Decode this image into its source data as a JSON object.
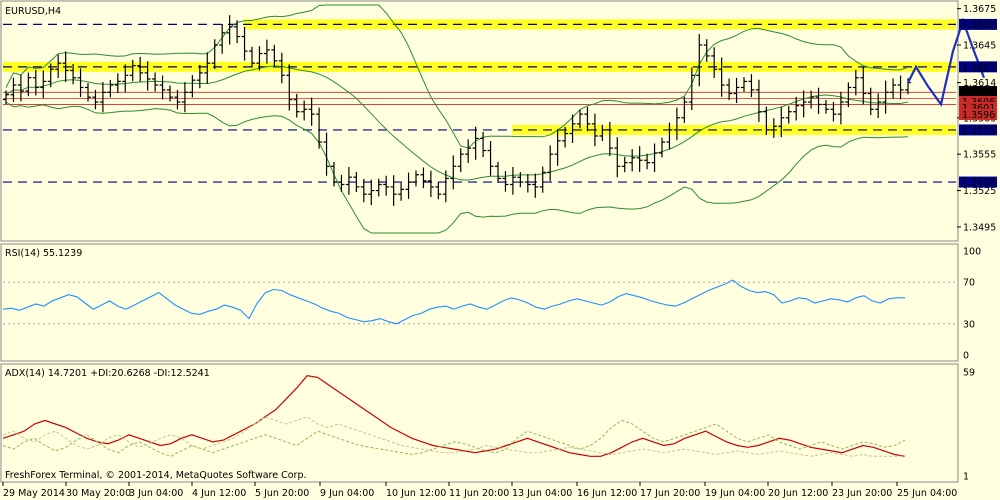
{
  "main_title": "EURUSD,H4",
  "rsi_title": "RSI(14) 55.1239",
  "adx_title": "ADX(14) 14.7201 +DI:20.6268 -DI:12.5241",
  "copyright": "FreshForex Terminal, © 2001-2014, MetaQuotes Software Corp.",
  "colors": {
    "background": "#ffffe0",
    "candles": "#000000",
    "bollinger": "#2e8b2e",
    "support_resistance_dashed": "#000080",
    "highlight_zone": "#ffff00",
    "current_price_lines": "#cc2a2a",
    "forecast": "#1f2fbf",
    "rsi": "#1e90ff",
    "adx": "#cc0000",
    "plus_di": "#8fbc4f",
    "minus_di": "#c8c48a"
  },
  "chart_data": [
    {
      "type": "candlestick",
      "title": "EURUSD,H4",
      "x": [
        "29 May 2014",
        "30 May 20:00",
        "3 Jun 04:00",
        "4 Jun 12:00",
        "5 Jun 20:00",
        "9 Jun 04:00",
        "10 Jun 12:00",
        "11 Jun 20:00",
        "13 Jun 04:00",
        "16 Jun 12:00",
        "17 Jun 20:00",
        "19 Jun 04:00",
        "20 Jun 12:00",
        "23 Jun 20:00",
        "25 Jun 04:00"
      ],
      "y_ticks": [
        "1.3675",
        "1.3645",
        "1.3614",
        "1.3585",
        "1.3555",
        "1.3525",
        "1.3495"
      ],
      "ylim": [
        1.349,
        1.3678
      ],
      "levels": [
        {
          "value": 1.3662,
          "label": "1.3662",
          "highlight": true
        },
        {
          "value": 1.3627,
          "label": "1.3627",
          "highlight": true
        },
        {
          "value": 1.3575,
          "label": "1.3575",
          "highlight": true
        },
        {
          "value": 1.3532,
          "label": "1.3532",
          "highlight": false
        }
      ],
      "current_prices": [
        {
          "label": "1.3614",
          "value": 1.3614
        },
        {
          "label": "1.3606",
          "value": 1.3606
        },
        {
          "label": "1.3601",
          "value": 1.3601
        },
        {
          "label": "1.3596",
          "value": 1.3596
        }
      ],
      "close_series": [
        1.3604,
        1.3612,
        1.3607,
        1.3618,
        1.361,
        1.3615,
        1.3625,
        1.363,
        1.3624,
        1.3618,
        1.361,
        1.3602,
        1.3598,
        1.3606,
        1.3612,
        1.3615,
        1.362,
        1.3628,
        1.3622,
        1.3617,
        1.3612,
        1.3608,
        1.3602,
        1.3598,
        1.3606,
        1.3616,
        1.3622,
        1.363,
        1.3645,
        1.3655,
        1.366,
        1.3652,
        1.364,
        1.363,
        1.3638,
        1.3641,
        1.3632,
        1.362,
        1.36,
        1.359,
        1.3592,
        1.3588,
        1.3565,
        1.3545,
        1.3532,
        1.353,
        1.3536,
        1.3528,
        1.3522,
        1.3525,
        1.353,
        1.3528,
        1.3522,
        1.3526,
        1.3532,
        1.3538,
        1.3533,
        1.3528,
        1.3522,
        1.3535,
        1.3545,
        1.3555,
        1.356,
        1.3568,
        1.3558,
        1.3545,
        1.3535,
        1.353,
        1.3536,
        1.3532,
        1.353,
        1.3528,
        1.354,
        1.3555,
        1.3566,
        1.3572,
        1.358,
        1.3588,
        1.358,
        1.357,
        1.3575,
        1.356,
        1.3545,
        1.3548,
        1.3552,
        1.355,
        1.3548,
        1.3556,
        1.3565,
        1.3575,
        1.3585,
        1.3598,
        1.362,
        1.3645,
        1.3636,
        1.3625,
        1.3612,
        1.3605,
        1.361,
        1.3615,
        1.3608,
        1.359,
        1.3575,
        1.3578,
        1.3585,
        1.359,
        1.3595,
        1.3598,
        1.3602,
        1.3596,
        1.3592,
        1.3588,
        1.3598,
        1.361,
        1.3618,
        1.3605,
        1.3592,
        1.3598,
        1.3606,
        1.3612,
        1.3608,
        1.3614
      ],
      "forecast": [
        1.3614,
        1.3627,
        1.3611,
        1.3596,
        1.364,
        1.3665,
        1.364,
        1.3618
      ]
    },
    {
      "type": "line",
      "title": "RSI(14) 55.1239",
      "y_ticks": [
        "100",
        "70",
        "30",
        "0"
      ],
      "ylim": [
        0,
        100
      ],
      "levels": [
        70,
        30
      ],
      "values": [
        44,
        45,
        43,
        46,
        49,
        47,
        52,
        55,
        58,
        56,
        50,
        44,
        48,
        52,
        47,
        44,
        48,
        52,
        56,
        60,
        54,
        48,
        44,
        40,
        39,
        42,
        44,
        48,
        46,
        43,
        35,
        50,
        60,
        63,
        62,
        58,
        55,
        52,
        49,
        45,
        42,
        40,
        36,
        34,
        32,
        33,
        35,
        32,
        30,
        34,
        38,
        40,
        44,
        46,
        47,
        44,
        47,
        49,
        46,
        44,
        48,
        52,
        55,
        53,
        50,
        46,
        44,
        47,
        49,
        52,
        54,
        52,
        50,
        48,
        51,
        56,
        59,
        57,
        55,
        52,
        50,
        48,
        47,
        50,
        54,
        58,
        62,
        65,
        68,
        72,
        66,
        62,
        60,
        61,
        58,
        50,
        52,
        55,
        54,
        50,
        52,
        54,
        53,
        51,
        55,
        57,
        52,
        50,
        54,
        55,
        55
      ]
    },
    {
      "type": "line",
      "title": "ADX(14) 14.7201 +DI:20.6268 -DI:12.5241",
      "y_ticks": [
        "59",
        "1"
      ],
      "ylim": [
        1,
        59
      ],
      "series": [
        {
          "name": "ADX(14) 14.7201",
          "values": [
            22,
            24,
            26,
            30,
            32,
            30,
            28,
            25,
            22,
            20,
            19,
            21,
            24,
            22,
            20,
            18,
            19,
            22,
            24,
            22,
            20,
            21,
            24,
            27,
            30,
            34,
            38,
            44,
            50,
            57,
            56,
            52,
            48,
            44,
            40,
            36,
            32,
            28,
            25,
            22,
            20,
            18,
            17,
            16,
            15,
            14,
            15,
            16,
            18,
            20,
            22,
            20,
            18,
            16,
            14,
            13,
            12,
            12,
            14,
            17,
            20,
            22,
            20,
            18,
            19,
            22,
            24,
            26,
            23,
            20,
            18,
            17,
            18,
            20,
            22,
            21,
            19,
            17,
            16,
            15,
            14,
            16,
            18,
            17,
            15,
            13,
            12
          ]
        },
        {
          "name": "+DI:20.6268",
          "values": [
            18,
            16,
            20,
            22,
            18,
            15,
            17,
            21,
            24,
            20,
            16,
            14,
            18,
            20,
            17,
            14,
            12,
            15,
            18,
            16,
            14,
            16,
            18,
            20,
            22,
            24,
            22,
            20,
            18,
            22,
            26,
            24,
            22,
            20,
            18,
            17,
            16,
            15,
            14,
            13,
            14,
            16,
            18,
            20,
            19,
            17,
            15,
            14,
            16,
            22,
            26,
            24,
            22,
            20,
            18,
            16,
            18,
            22,
            28,
            32,
            30,
            26,
            22,
            20,
            22,
            24,
            26,
            28,
            30,
            26,
            22,
            20,
            22,
            24,
            20,
            18,
            16,
            18,
            20,
            18,
            16,
            18,
            20,
            19,
            17,
            18,
            21
          ]
        },
        {
          "name": "-DI:12.5241",
          "values": [
            24,
            26,
            22,
            20,
            24,
            26,
            22,
            18,
            16,
            18,
            22,
            24,
            20,
            17,
            19,
            22,
            24,
            22,
            18,
            16,
            18,
            20,
            22,
            26,
            30,
            34,
            32,
            30,
            32,
            34,
            30,
            28,
            30,
            28,
            26,
            24,
            22,
            20,
            18,
            17,
            16,
            15,
            14,
            14,
            15,
            16,
            18,
            17,
            16,
            15,
            14,
            14,
            15,
            16,
            17,
            16,
            15,
            14,
            13,
            14,
            15,
            16,
            15,
            14,
            15,
            16,
            15,
            14,
            13,
            14,
            15,
            14,
            13,
            14,
            15,
            14,
            13,
            12,
            13,
            14,
            13,
            12,
            13,
            12,
            12,
            12,
            12
          ]
        }
      ]
    }
  ]
}
